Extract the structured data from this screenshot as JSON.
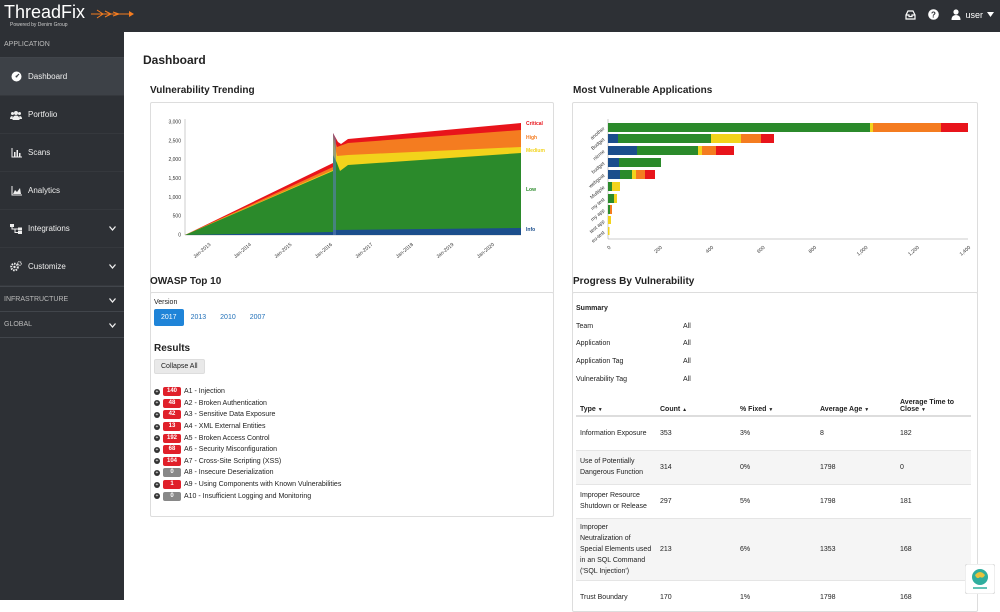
{
  "app": {
    "logo": "ThreadFix",
    "logo_sub": "Powered by Denim Group",
    "user": "user"
  },
  "sidebar": {
    "sections": {
      "application": "APPLICATION",
      "infrastructure": "INFRASTRUCTURE",
      "global": "GLOBAL"
    },
    "items": [
      {
        "label": "Dashboard",
        "icon": "dashboard-icon"
      },
      {
        "label": "Portfolio",
        "icon": "users-icon"
      },
      {
        "label": "Scans",
        "icon": "bar-chart-icon"
      },
      {
        "label": "Analytics",
        "icon": "area-chart-icon"
      },
      {
        "label": "Integrations",
        "icon": "sitemap-icon"
      },
      {
        "label": "Customize",
        "icon": "cogs-icon"
      }
    ]
  },
  "dashboard": {
    "title": "Dashboard"
  },
  "trending": {
    "title": "Vulnerability Trending",
    "y_ticks": [
      "0",
      "500",
      "1,000",
      "1,500",
      "2,000",
      "2,500",
      "3,000"
    ],
    "x_ticks": [
      "Jan-2013",
      "Jan-2014",
      "Jan-2015",
      "Jan-2016",
      "Jan-2017",
      "Jan-2018",
      "Jan-2019",
      "Jan-2020"
    ],
    "legend": [
      "Critical",
      "High",
      "Medium",
      "Low",
      "Info"
    ]
  },
  "most_vulnerable": {
    "title": "Most Vulnerable Applications",
    "x_ticks": [
      "0",
      "200",
      "400",
      "600",
      "800",
      "1,000",
      "1,200",
      "1,400"
    ],
    "apps": [
      "another",
      "Budget",
      "nicme",
      "budget",
      "webgoat",
      "Multiple",
      "my test",
      "my app",
      "test app",
      "eu-test"
    ]
  },
  "owasp": {
    "title": "OWASP Top 10",
    "version_label": "Version",
    "versions": [
      "2017",
      "2013",
      "2010",
      "2007"
    ],
    "results_title": "Results",
    "collapse_label": "Collapse All",
    "items": [
      {
        "count": "140",
        "label": "A1 - Injection",
        "zero": false
      },
      {
        "count": "48",
        "label": "A2 - Broken Authentication",
        "zero": false
      },
      {
        "count": "42",
        "label": "A3 - Sensitive Data Exposure",
        "zero": false
      },
      {
        "count": "13",
        "label": "A4 - XML External Entities",
        "zero": false
      },
      {
        "count": "192",
        "label": "A5 - Broken Access Control",
        "zero": false
      },
      {
        "count": "68",
        "label": "A6 - Security Misconfiguration",
        "zero": false
      },
      {
        "count": "104",
        "label": "A7 - Cross-Site Scripting (XSS)",
        "zero": false
      },
      {
        "count": "0",
        "label": "A8 - Insecure Deserialization",
        "zero": true
      },
      {
        "count": "1",
        "label": "A9 - Using Components with Known Vulnerabilities",
        "zero": false
      },
      {
        "count": "0",
        "label": "A10 - Insufficient Logging and Monitoring",
        "zero": true
      }
    ]
  },
  "progress": {
    "title": "Progress By Vulnerability",
    "summary_title": "Summary",
    "filters": [
      {
        "key": "Team",
        "value": "All"
      },
      {
        "key": "Application",
        "value": "All"
      },
      {
        "key": "Application Tag",
        "value": "All"
      },
      {
        "key": "Vulnerability Tag",
        "value": "All"
      }
    ],
    "columns": [
      "Type",
      "Count",
      "% Fixed",
      "Average Age",
      "Average Time to Close"
    ],
    "rows": [
      {
        "type": "Information Exposure",
        "count": "353",
        "fixed": "3%",
        "age": "8",
        "close": "182"
      },
      {
        "type": "Use of Potentially Dangerous Function",
        "count": "314",
        "fixed": "0%",
        "age": "1798",
        "close": "0"
      },
      {
        "type": "Improper Resource Shutdown or Release",
        "count": "297",
        "fixed": "5%",
        "age": "1798",
        "close": "181"
      },
      {
        "type": "Improper Neutralization of Special Elements used in an SQL Command ('SQL Injection')",
        "count": "213",
        "fixed": "6%",
        "age": "1353",
        "close": "168"
      },
      {
        "type": "Trust Boundary",
        "count": "170",
        "fixed": "1%",
        "age": "1798",
        "close": "168"
      }
    ]
  },
  "colors": {
    "critical": "#e8141b",
    "high": "#f47c20",
    "medium": "#f2d31b",
    "low": "#2b8a2b",
    "info": "#1b4e8c",
    "sidebar": "#2d3035"
  }
}
